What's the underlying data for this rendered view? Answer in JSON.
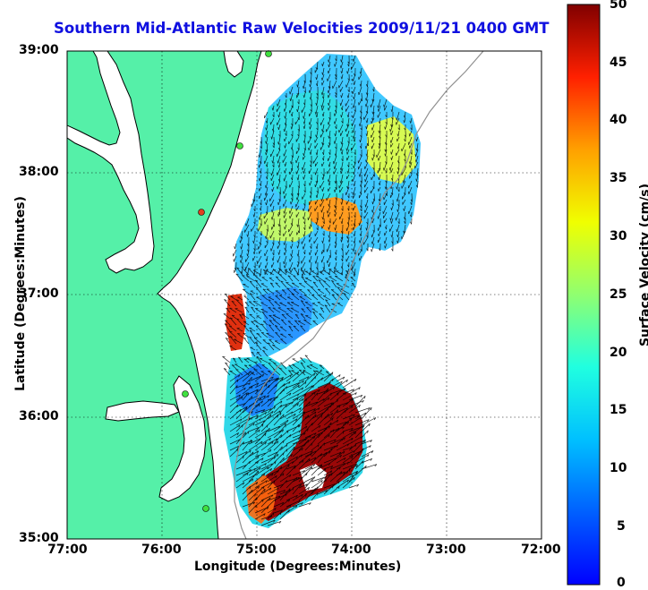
{
  "map": {
    "title": "Southern Mid-Atlantic Raw Velocities 2009/11/21 0400 GMT",
    "xlabel": "Longitude (Degrees:Minutes)",
    "ylabel": "Latitude (Degrees:Minutes)",
    "x_ticks": [
      "77:00",
      "76:00",
      "75:00",
      "74:00",
      "73:00",
      "72:00"
    ],
    "y_ticks": [
      "39:00",
      "38:00",
      "37:00",
      "36:00",
      "35:00"
    ],
    "colors": {
      "land": "#55f0a8",
      "ocean": "#ffffff",
      "title": "#1010e0"
    }
  },
  "colorbar": {
    "label": "Surface Velocity (cm/s)",
    "ticks": [
      "50",
      "45",
      "40",
      "35",
      "30",
      "25",
      "20",
      "15",
      "10",
      "5",
      "0"
    ],
    "range": [
      0,
      50
    ]
  },
  "chart_data": {
    "type": "heatmap",
    "title": "Southern Mid-Atlantic Raw Velocities 2009/11/21 0400 GMT",
    "xlabel": "Longitude (Degrees:Minutes)",
    "ylabel": "Latitude (Degrees:Minutes)",
    "xlim": [
      -77,
      -72
    ],
    "ylim": [
      35,
      39
    ],
    "color_range": [
      0,
      50
    ],
    "color_label": "Surface Velocity (cm/s)",
    "grid": true,
    "regions": [
      {
        "lon": -73.6,
        "lat": 38.2,
        "speed": 22
      },
      {
        "lon": -74.1,
        "lat": 37.6,
        "speed": 35
      },
      {
        "lon": -74.6,
        "lat": 37.5,
        "speed": 25
      },
      {
        "lon": -74.7,
        "lat": 37.1,
        "speed": 10
      },
      {
        "lon": -75.1,
        "lat": 36.7,
        "speed": 38
      },
      {
        "lon": -74.8,
        "lat": 36.4,
        "speed": 8
      },
      {
        "lon": -74.2,
        "lat": 35.8,
        "speed": 50
      },
      {
        "lon": -74.6,
        "lat": 35.3,
        "speed": 48
      }
    ]
  }
}
